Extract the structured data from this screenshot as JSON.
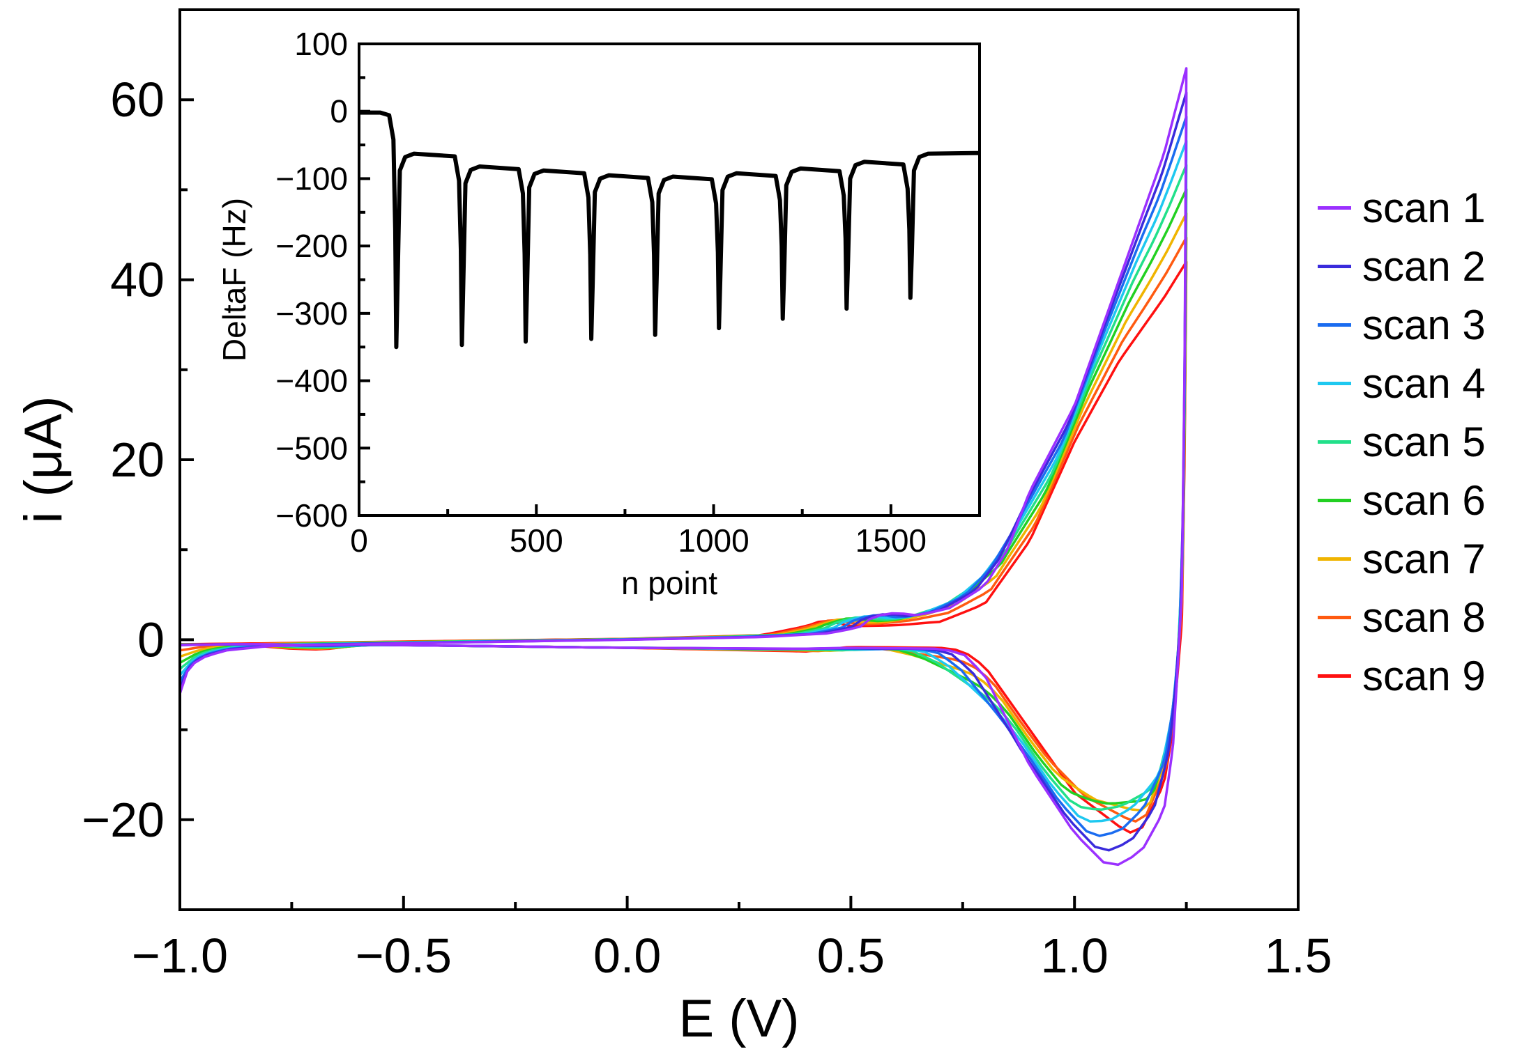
{
  "chart_data": [
    {
      "type": "line",
      "id": "main",
      "title": "",
      "xlabel": "E (V)",
      "ylabel": "i (μA)",
      "xlim": [
        -1.0,
        1.5
      ],
      "ylim": [
        -30,
        70
      ],
      "xticks": [
        -1.0,
        -0.5,
        0.0,
        0.5,
        1.0,
        1.5
      ],
      "xtick_labels": [
        "−1.0",
        "−0.5",
        "0.0",
        "0.5",
        "1.0",
        "1.5"
      ],
      "yticks": [
        -20,
        0,
        20,
        40,
        60
      ],
      "ytick_labels": [
        "−20",
        "0",
        "20",
        "40",
        "60"
      ],
      "legend_position": "right-outside",
      "grid": false,
      "series": [
        {
          "name": "scan 1",
          "color": "#9b30ff",
          "k": 0
        },
        {
          "name": "scan 2",
          "color": "#3a2bdc",
          "k": 1
        },
        {
          "name": "scan 3",
          "color": "#1a6cf0",
          "k": 2
        },
        {
          "name": "scan 4",
          "color": "#1ec8f0",
          "k": 3
        },
        {
          "name": "scan 5",
          "color": "#22e08a",
          "k": 4
        },
        {
          "name": "scan 6",
          "color": "#22d022",
          "k": 5
        },
        {
          "name": "scan 7",
          "color": "#f0b400",
          "k": 6
        },
        {
          "name": "scan 8",
          "color": "#ff5a10",
          "k": 7
        },
        {
          "name": "scan 9",
          "color": "#ff1010",
          "k": 8
        }
      ],
      "anodic_scan1": [
        [
          -1.0,
          -6.0
        ],
        [
          -0.98,
          -3.0
        ],
        [
          -0.95,
          -2.0
        ],
        [
          -0.9,
          -1.2
        ],
        [
          -0.8,
          -0.7
        ],
        [
          -0.5,
          -0.4
        ],
        [
          0.0,
          0.0
        ],
        [
          0.3,
          0.3
        ],
        [
          0.45,
          0.7
        ],
        [
          0.52,
          1.4
        ],
        [
          0.55,
          2.6
        ],
        [
          0.6,
          3.0
        ],
        [
          0.65,
          2.7
        ],
        [
          0.72,
          3.5
        ],
        [
          0.8,
          6.0
        ],
        [
          0.85,
          10.0
        ],
        [
          0.9,
          16.5
        ],
        [
          1.0,
          26.0
        ],
        [
          1.1,
          40.0
        ],
        [
          1.15,
          47.0
        ],
        [
          1.2,
          54.0
        ],
        [
          1.25,
          63.5
        ]
      ],
      "anodic_scan9": [
        [
          -1.0,
          -0.5
        ],
        [
          -0.8,
          -0.4
        ],
        [
          -0.5,
          -0.2
        ],
        [
          0.0,
          0.1
        ],
        [
          0.3,
          0.5
        ],
        [
          0.4,
          1.5
        ],
        [
          0.44,
          2.2
        ],
        [
          0.5,
          1.5
        ],
        [
          0.6,
          1.6
        ],
        [
          0.7,
          2.0
        ],
        [
          0.8,
          4.0
        ],
        [
          0.9,
          11.0
        ],
        [
          1.0,
          22.0
        ],
        [
          1.1,
          31.0
        ],
        [
          1.2,
          38.0
        ],
        [
          1.25,
          42.0
        ]
      ],
      "cathodic_scan1": [
        [
          1.25,
          63.5
        ],
        [
          1.246,
          30.0
        ],
        [
          1.24,
          5.0
        ],
        [
          1.22,
          -12.0
        ],
        [
          1.2,
          -19.0
        ],
        [
          1.15,
          -23.5
        ],
        [
          1.1,
          -25.0
        ],
        [
          1.07,
          -25.0
        ],
        [
          1.0,
          -21.5
        ],
        [
          0.9,
          -14.0
        ],
        [
          0.8,
          -4.0
        ],
        [
          0.75,
          -1.5
        ],
        [
          0.7,
          -1.0
        ],
        [
          0.5,
          -0.9
        ],
        [
          0.4,
          -1.0
        ],
        [
          0.0,
          -0.9
        ],
        [
          -0.5,
          -0.6
        ],
        [
          -0.6,
          -0.5
        ],
        [
          -0.7,
          -0.6
        ],
        [
          -0.8,
          -0.5
        ],
        [
          -0.9,
          -0.5
        ],
        [
          -1.0,
          -0.6
        ]
      ],
      "cathodic_scan9": [
        [
          1.25,
          42.0
        ],
        [
          1.246,
          20.0
        ],
        [
          1.24,
          2.0
        ],
        [
          1.22,
          -10.0
        ],
        [
          1.2,
          -16.0
        ],
        [
          1.15,
          -21.0
        ],
        [
          1.12,
          -21.5
        ],
        [
          1.08,
          -20.0
        ],
        [
          1.0,
          -17.0
        ],
        [
          0.9,
          -10.0
        ],
        [
          0.8,
          -3.0
        ],
        [
          0.75,
          -1.2
        ],
        [
          0.7,
          -0.9
        ],
        [
          0.5,
          -0.8
        ],
        [
          0.4,
          -1.3
        ],
        [
          0.0,
          -0.9
        ],
        [
          -0.5,
          -0.6
        ],
        [
          -0.6,
          -0.6
        ],
        [
          -0.68,
          -1.1
        ],
        [
          -0.75,
          -1.0
        ],
        [
          -0.85,
          -0.6
        ],
        [
          -1.0,
          -0.5
        ]
      ]
    },
    {
      "type": "line",
      "id": "inset",
      "title": "",
      "xlabel": "n point",
      "ylabel": "DeltaF (Hz)",
      "xlim": [
        0,
        1750
      ],
      "ylim": [
        -600,
        100
      ],
      "xticks": [
        0,
        500,
        1000,
        1500
      ],
      "xtick_labels": [
        "0",
        "500",
        "1000",
        "1500"
      ],
      "yticks": [
        100,
        0,
        -100,
        -200,
        -300,
        -400,
        -500,
        -600
      ],
      "ytick_labels": [
        "100",
        "0",
        "−100",
        "−200",
        "−300",
        "−400",
        "−500",
        "−600"
      ],
      "color": "#000000",
      "dips": [
        {
          "x": 105,
          "min": -350,
          "recover": -63
        },
        {
          "x": 290,
          "min": -347,
          "recover": -82
        },
        {
          "x": 470,
          "min": -342,
          "recover": -88
        },
        {
          "x": 655,
          "min": -338,
          "recover": -95
        },
        {
          "x": 835,
          "min": -332,
          "recover": -97
        },
        {
          "x": 1015,
          "min": -322,
          "recover": -92
        },
        {
          "x": 1195,
          "min": -308,
          "recover": -85
        },
        {
          "x": 1375,
          "min": -293,
          "recover": -75
        },
        {
          "x": 1555,
          "min": -277,
          "recover": -63
        }
      ],
      "start_value": -2,
      "end_value": -62
    }
  ]
}
